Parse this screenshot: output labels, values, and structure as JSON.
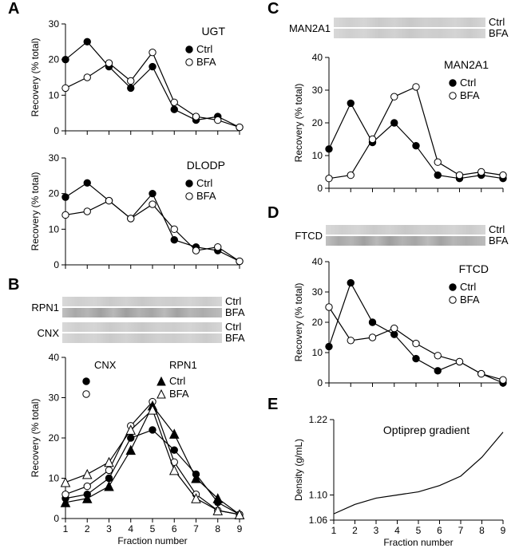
{
  "letters": {
    "A": "A",
    "B": "B",
    "C": "C",
    "D": "D",
    "E": "E"
  },
  "axis_labels": {
    "recovery": "Recovery (% total)",
    "fraction": "Fraction number",
    "density": "Density (g/mL)"
  },
  "legend": {
    "ctrl": "Ctrl",
    "bfa": "BFA"
  },
  "panelA_UGT": {
    "type": "line",
    "title": "UGT",
    "x": [
      1,
      2,
      3,
      4,
      5,
      6,
      7,
      8,
      9
    ],
    "ylim": [
      0,
      30
    ],
    "ytick_step": 10,
    "xlim": [
      1,
      9
    ],
    "ctrl": [
      20,
      25,
      18,
      12,
      18,
      6,
      3,
      4,
      1
    ],
    "bfa": [
      12,
      15,
      19,
      14,
      22,
      8,
      4,
      3,
      1
    ],
    "colors": {
      "ctrl": "#000000",
      "bfa": "#ffffff"
    },
    "marker": "circle",
    "line_color": "#000000"
  },
  "panelA_DLODP": {
    "type": "line",
    "title": "DLODP",
    "x": [
      1,
      2,
      3,
      4,
      5,
      6,
      7,
      8,
      9
    ],
    "ylim": [
      0,
      30
    ],
    "ytick_step": 10,
    "xlim": [
      1,
      9
    ],
    "ctrl": [
      19,
      23,
      18,
      13,
      20,
      7,
      5,
      4,
      1
    ],
    "bfa": [
      14,
      15,
      18,
      13,
      17,
      10,
      4,
      5,
      1
    ],
    "colors": {
      "ctrl": "#000000",
      "bfa": "#ffffff"
    },
    "marker": "circle",
    "line_color": "#000000"
  },
  "panelB": {
    "type": "line",
    "gel_labels_left": {
      "rpn1": "RPN1",
      "cnx": "CNX"
    },
    "legend_titles": {
      "cnx": "CNX",
      "rpn1": "RPN1"
    },
    "x": [
      1,
      2,
      3,
      4,
      5,
      6,
      7,
      8,
      9
    ],
    "ylim": [
      0,
      40
    ],
    "ytick_step": 10,
    "xlim": [
      1,
      9
    ],
    "cnx_ctrl": [
      5,
      6,
      10,
      20,
      22,
      17,
      11,
      4,
      1
    ],
    "cnx_bfa": [
      6,
      8,
      12,
      23,
      29,
      14,
      6,
      2,
      1
    ],
    "rpn1_ctrl": [
      4,
      5,
      8,
      17,
      28,
      21,
      10,
      5,
      1
    ],
    "rpn1_bfa": [
      9,
      11,
      14,
      22,
      27,
      12,
      5,
      2,
      1
    ],
    "markers": {
      "cnx": "circle",
      "rpn1": "triangle"
    },
    "colors": {
      "ctrl_fill": "#000000",
      "bfa_fill": "#ffffff"
    },
    "line_color": "#000000"
  },
  "panelC": {
    "type": "line",
    "title": "MAN2A1",
    "gel_label_left": "MAN2A1",
    "x": [
      1,
      2,
      3,
      4,
      5,
      6,
      7,
      8,
      9
    ],
    "ylim": [
      0,
      40
    ],
    "ytick_step": 10,
    "xlim": [
      1,
      9
    ],
    "ctrl": [
      12,
      26,
      14,
      20,
      13,
      4,
      3,
      4,
      3
    ],
    "bfa": [
      3,
      4,
      15,
      28,
      31,
      8,
      4,
      5,
      4
    ],
    "colors": {
      "ctrl": "#000000",
      "bfa": "#ffffff"
    },
    "marker": "circle",
    "line_color": "#000000"
  },
  "panelD": {
    "type": "line",
    "title": "FTCD",
    "gel_label_left": "FTCD",
    "x": [
      1,
      2,
      3,
      4,
      5,
      6,
      7,
      8,
      9
    ],
    "ylim": [
      0,
      40
    ],
    "ytick_step": 10,
    "xlim": [
      1,
      9
    ],
    "ctrl": [
      12,
      33,
      20,
      16,
      8,
      4,
      7,
      3,
      0
    ],
    "bfa": [
      25,
      14,
      15,
      18,
      13,
      9,
      7,
      3,
      1
    ],
    "colors": {
      "ctrl": "#000000",
      "bfa": "#ffffff"
    },
    "marker": "circle",
    "line_color": "#000000"
  },
  "panelE": {
    "type": "line",
    "title": "Optiprep gradient",
    "x": [
      1,
      2,
      3,
      4,
      5,
      6,
      7,
      8,
      9
    ],
    "ylim": [
      1.06,
      1.22
    ],
    "yticks": [
      1.06,
      1.1,
      1.22
    ],
    "xlim": [
      1,
      9
    ],
    "density": [
      1.07,
      1.085,
      1.095,
      1.1,
      1.105,
      1.115,
      1.13,
      1.16,
      1.2
    ],
    "line_color": "#000000"
  },
  "styling": {
    "background_color": "#ffffff",
    "axis_color": "#000000",
    "font_family": "Arial",
    "title_fontsize": 14,
    "axis_label_fontsize": 12,
    "tick_fontsize": 11,
    "marker_radius": 4.2,
    "line_width": 1.2
  }
}
